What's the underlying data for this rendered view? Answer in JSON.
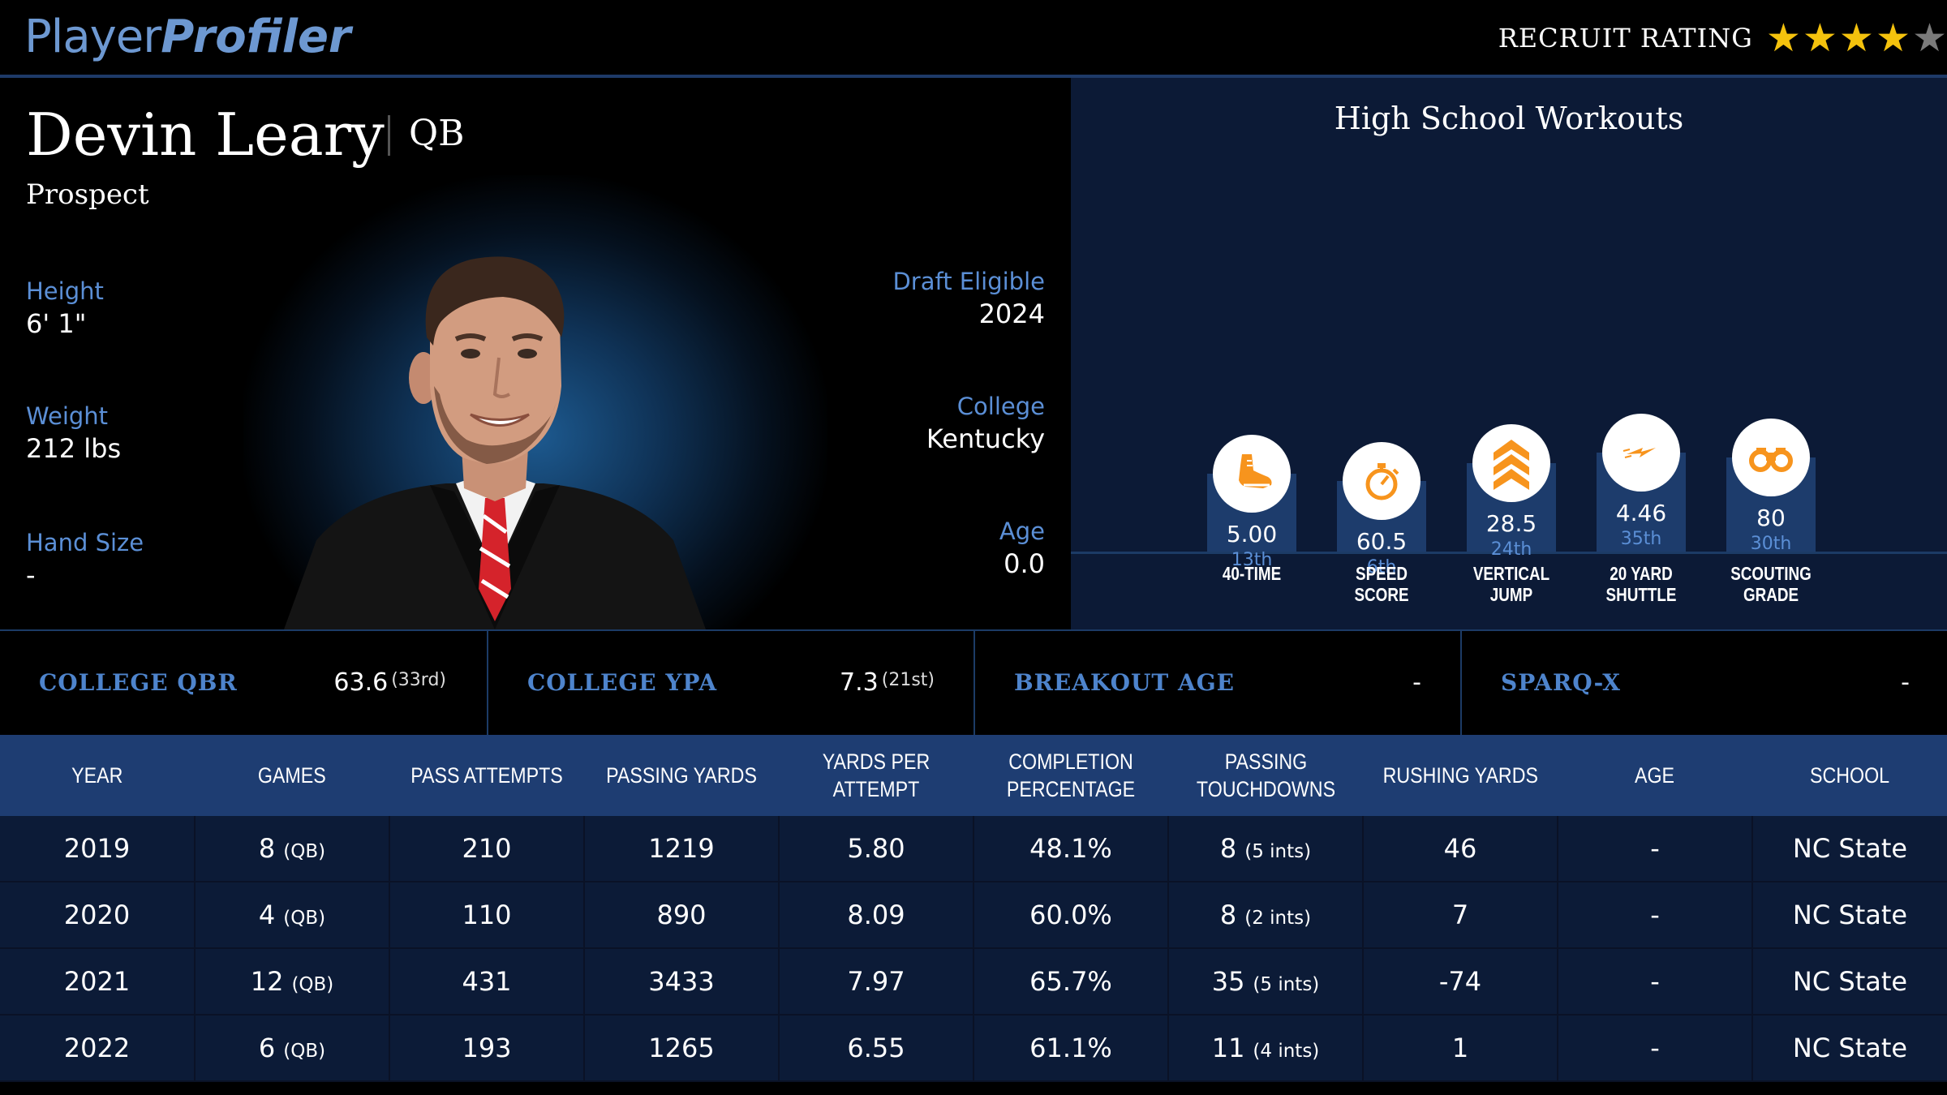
{
  "header": {
    "logo_part1": "Player",
    "logo_part2": "Profiler",
    "rating_label": "RECRUIT RATING",
    "rating_stars": 4,
    "rating_max": 5
  },
  "player": {
    "name": "Devin Leary",
    "position": "QB",
    "status": "Prospect",
    "height_label": "Height",
    "height": "6' 1\"",
    "weight_label": "Weight",
    "weight": "212 lbs",
    "hand_size_label": "Hand Size",
    "hand_size": "-",
    "draft_label": "Draft Eligible",
    "draft_year": "2024",
    "college_label": "College",
    "college": "Kentucky",
    "age_label": "Age",
    "age": "0.0"
  },
  "workouts": {
    "title": "High School Workouts",
    "items": [
      {
        "label_line1": "40-TIME",
        "label_line2": "",
        "value": "5.00",
        "percentile": "13th",
        "icon": "running-shoe-icon",
        "level": 13
      },
      {
        "label_line1": "SPEED",
        "label_line2": "SCORE",
        "value": "60.5",
        "percentile": "6th",
        "icon": "stopwatch-icon",
        "level": 6
      },
      {
        "label_line1": "VERTICAL",
        "label_line2": "JUMP",
        "value": "28.5",
        "percentile": "24th",
        "icon": "chevrons-up-icon",
        "level": 24
      },
      {
        "label_line1": "20 YARD",
        "label_line2": "SHUTTLE",
        "value": "4.46",
        "percentile": "35th",
        "icon": "lightning-icon",
        "level": 35
      },
      {
        "label_line1": "SCOUTING",
        "label_line2": "GRADE",
        "value": "80",
        "percentile": "30th",
        "icon": "binoculars-icon",
        "level": 30
      }
    ],
    "accent_color": "#f7941d"
  },
  "metrics": [
    {
      "label": "COLLEGE QBR",
      "value": "63.6",
      "rank": "(33rd)"
    },
    {
      "label": "COLLEGE YPA",
      "value": "7.3",
      "rank": "(21st)"
    },
    {
      "label": "BREAKOUT AGE",
      "value": "-",
      "rank": ""
    },
    {
      "label": "SPARQ-X",
      "value": "-",
      "rank": ""
    }
  ],
  "table": {
    "headers": [
      [
        "YEAR"
      ],
      [
        "GAMES"
      ],
      [
        "PASS ATTEMPTS"
      ],
      [
        "PASSING YARDS"
      ],
      [
        "YARDS PER ATTEMPT"
      ],
      [
        "COMPLETION",
        "PERCENTAGE"
      ],
      [
        "PASSING",
        "TOUCHDOWNS"
      ],
      [
        "RUSHING YARDS"
      ],
      [
        "AGE"
      ],
      [
        "SCHOOL"
      ]
    ],
    "rows": [
      {
        "year": "2019",
        "games": "8",
        "games_pos": "(QB)",
        "att": "210",
        "yds": "1219",
        "ypa": "5.80",
        "cmp": "48.1%",
        "td": "8",
        "ints": "(5 ints)",
        "rush": "46",
        "age": "-",
        "school": "NC State"
      },
      {
        "year": "2020",
        "games": "4",
        "games_pos": "(QB)",
        "att": "110",
        "yds": "890",
        "ypa": "8.09",
        "cmp": "60.0%",
        "td": "8",
        "ints": "(2 ints)",
        "rush": "7",
        "age": "-",
        "school": "NC State"
      },
      {
        "year": "2021",
        "games": "12",
        "games_pos": "(QB)",
        "att": "431",
        "yds": "3433",
        "ypa": "7.97",
        "cmp": "65.7%",
        "td": "35",
        "ints": "(5 ints)",
        "rush": "-74",
        "age": "-",
        "school": "NC State"
      },
      {
        "year": "2022",
        "games": "6",
        "games_pos": "(QB)",
        "att": "193",
        "yds": "1265",
        "ypa": "6.55",
        "cmp": "61.1%",
        "td": "11",
        "ints": "(4 ints)",
        "rush": "1",
        "age": "-",
        "school": "NC State"
      }
    ]
  }
}
